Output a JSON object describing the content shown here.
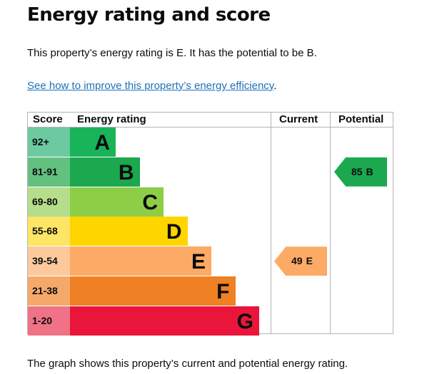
{
  "title": "Energy rating and score",
  "summary": "This property’s energy rating is E. It has the potential to be B.",
  "improve_link": "See how to improve this property’s energy efficiency",
  "improve_link_suffix": ".",
  "chart": {
    "headers": {
      "score": "Score",
      "rating": "Energy rating",
      "current": "Current",
      "potential": "Potential"
    },
    "bands": [
      {
        "score": "92+",
        "letter": "A",
        "color": "#19b459",
        "score_bg": "#6cc9a0",
        "text_color": "#0b0c0c"
      },
      {
        "score": "81-91",
        "letter": "B",
        "color": "#1ba84e",
        "score_bg": "#63c17f",
        "text_color": "#0b0c0c"
      },
      {
        "score": "69-80",
        "letter": "C",
        "color": "#8dce46",
        "score_bg": "#b6dd8b",
        "text_color": "#0b0c0c"
      },
      {
        "score": "55-68",
        "letter": "D",
        "color": "#ffd500",
        "score_bg": "#ffe566",
        "text_color": "#0b0c0c"
      },
      {
        "score": "39-54",
        "letter": "E",
        "color": "#fcaa65",
        "score_bg": "#fdc99c",
        "text_color": "#0b0c0c"
      },
      {
        "score": "21-38",
        "letter": "F",
        "color": "#ef8023",
        "score_bg": "#f4a96b",
        "text_color": "#0b0c0c"
      },
      {
        "score": "1-20",
        "letter": "G",
        "color": "#e9153b",
        "score_bg": "#f07286",
        "text_color": "#0b0c0c"
      }
    ],
    "current": {
      "value": "49",
      "letter": "E",
      "color": "#fcaa65"
    },
    "potential": {
      "value": "85",
      "letter": "B",
      "color": "#1ba84e"
    }
  },
  "footer": "The graph shows this property’s current and potential energy rating."
}
